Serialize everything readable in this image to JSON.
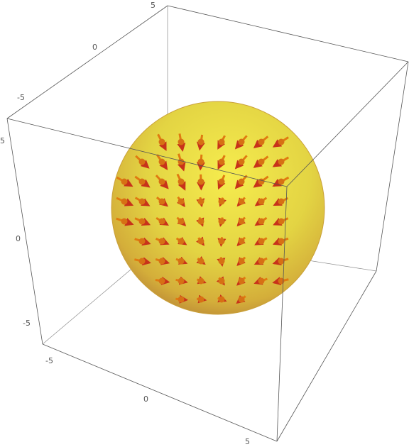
{
  "figure": {
    "type": "3d-vector-field-on-sphere",
    "box_range": [
      -5,
      5
    ],
    "sphere_color": "#e8dc45",
    "sphere_edge_color": "#c28a2a",
    "arrow_color": "#e07a10",
    "arrow_tip_color": "#b81e1e"
  },
  "ticks": {
    "top": [
      "5",
      "0",
      "-5"
    ],
    "left": [
      "5",
      "0",
      "-5"
    ],
    "bottom": [
      "-5",
      "0",
      "5"
    ]
  }
}
